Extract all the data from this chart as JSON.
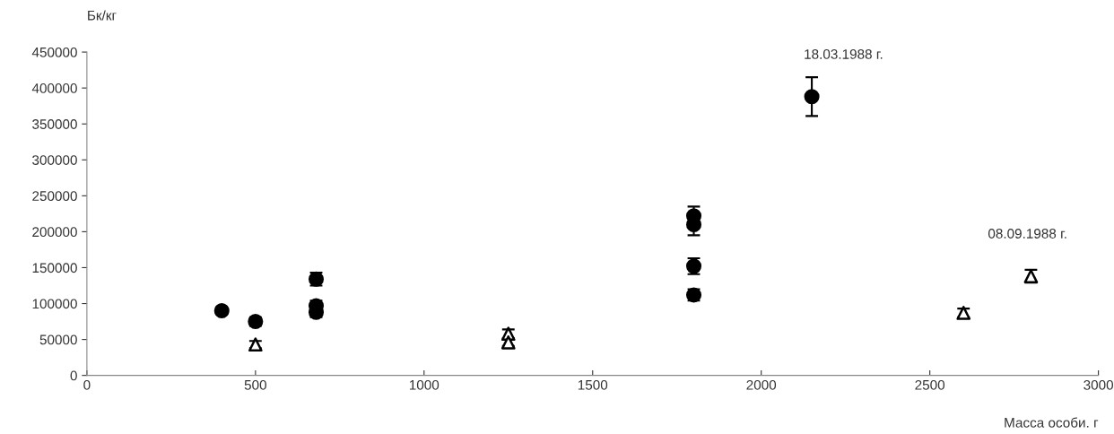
{
  "chart_data": {
    "type": "scatter",
    "xlabel": "Масса особи. г",
    "ylabel": "Бк/кг",
    "xlim": [
      0,
      3000
    ],
    "xticks": [
      0,
      500,
      1000,
      1500,
      2000,
      2500,
      3000
    ],
    "ylim": [
      0,
      450000
    ],
    "yticks": [
      0,
      50000,
      100000,
      150000,
      200000,
      250000,
      300000,
      350000,
      400000,
      450000
    ],
    "grid": false,
    "series": [
      {
        "color": "#000000",
        "marker": "circle",
        "x": [
          400,
          500,
          680,
          680,
          680,
          1800,
          1800,
          1800,
          1800,
          2150
        ],
        "values": [
          90000,
          75000,
          97000,
          88000,
          134000,
          222000,
          210000,
          152000,
          112000,
          388000
        ],
        "errors": [
          5000,
          6000,
          7000,
          7000,
          9000,
          13000,
          15000,
          11000,
          8000,
          27000
        ]
      },
      {
        "color": "#000000",
        "marker": "triangle",
        "x": [
          500,
          1250,
          1250,
          2600,
          2800
        ],
        "values": [
          43000,
          58000,
          46000,
          87000,
          138000
        ],
        "errors": [
          5000,
          6000,
          5000,
          6000,
          9000
        ]
      }
    ],
    "annotations": [
      "18.03.1988 г.",
      "08.09.1988 г."
    ]
  }
}
